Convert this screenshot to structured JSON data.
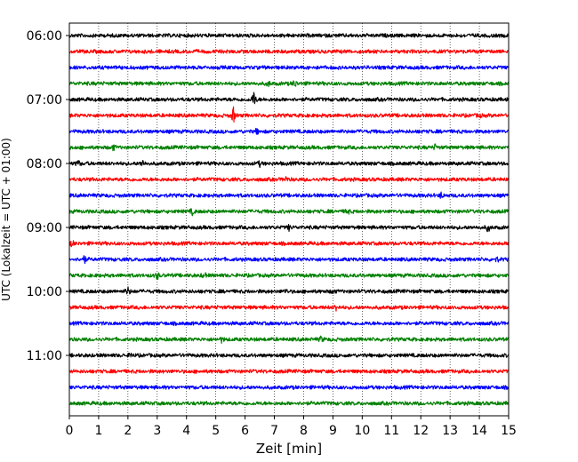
{
  "chart_data": {
    "type": "line",
    "xlabel": "Zeit  [min]",
    "ylabel": "UTC (Lokalzeit = UTC + 01:00)",
    "xlim": [
      0,
      15
    ],
    "x_ticks": [
      0,
      1,
      2,
      3,
      4,
      5,
      6,
      7,
      8,
      9,
      10,
      11,
      12,
      13,
      14,
      15
    ],
    "x_tick_labels": [
      "0",
      "1",
      "2",
      "3",
      "4",
      "5",
      "6",
      "7",
      "8",
      "9",
      "10",
      "11",
      "12",
      "13",
      "14",
      "15"
    ],
    "y_tick_labels": [
      "06:00",
      "07:00",
      "08:00",
      "09:00",
      "10:00",
      "11:00"
    ],
    "trace_interval_min": 15,
    "grid": "vertical-dotted",
    "trace_colors": [
      "#000000",
      "#ff0000",
      "#0000ff",
      "#008000"
    ],
    "series": [
      {
        "start": "06:00",
        "color": "#000000",
        "events": []
      },
      {
        "start": "06:15",
        "color": "#ff0000",
        "events": []
      },
      {
        "start": "06:30",
        "color": "#0000ff",
        "events": []
      },
      {
        "start": "06:45",
        "color": "#008000",
        "events": [
          {
            "t": 6.8,
            "amp": 0.3
          },
          {
            "t": 7.7,
            "amp": 0.45
          }
        ]
      },
      {
        "start": "07:00",
        "color": "#000000",
        "events": [
          {
            "t": 6.3,
            "amp": 0.95
          }
        ]
      },
      {
        "start": "07:15",
        "color": "#ff0000",
        "events": [
          {
            "t": 5.6,
            "amp": 0.95
          },
          {
            "t": 14.0,
            "amp": 0.2
          }
        ]
      },
      {
        "start": "07:30",
        "color": "#0000ff",
        "events": [
          {
            "t": 6.4,
            "amp": 0.3
          }
        ]
      },
      {
        "start": "07:45",
        "color": "#008000",
        "events": [
          {
            "t": 1.5,
            "amp": 0.3
          },
          {
            "t": 12.5,
            "amp": 0.3
          }
        ]
      },
      {
        "start": "08:00",
        "color": "#000000",
        "events": [
          {
            "t": 0.3,
            "amp": 0.35
          },
          {
            "t": 2.5,
            "amp": 0.4
          },
          {
            "t": 6.5,
            "amp": 0.25
          }
        ]
      },
      {
        "start": "08:15",
        "color": "#ff0000",
        "events": [
          {
            "t": 7.4,
            "amp": 0.25
          }
        ]
      },
      {
        "start": "08:30",
        "color": "#0000ff",
        "events": [
          {
            "t": 12.7,
            "amp": 0.3
          }
        ]
      },
      {
        "start": "08:45",
        "color": "#008000",
        "events": [
          {
            "t": 4.2,
            "amp": 0.3
          },
          {
            "t": 9.5,
            "amp": 0.35
          }
        ]
      },
      {
        "start": "09:00",
        "color": "#000000",
        "events": [
          {
            "t": 7.5,
            "amp": 0.25
          },
          {
            "t": 14.3,
            "amp": 0.5
          }
        ]
      },
      {
        "start": "09:15",
        "color": "#ff0000",
        "events": [
          {
            "t": 0.1,
            "amp": 0.3
          }
        ]
      },
      {
        "start": "09:30",
        "color": "#0000ff",
        "events": [
          {
            "t": 0.5,
            "amp": 0.55
          },
          {
            "t": 14.6,
            "amp": 0.25
          }
        ]
      },
      {
        "start": "09:45",
        "color": "#008000",
        "events": [
          {
            "t": 3.0,
            "amp": 0.4
          },
          {
            "t": 4.6,
            "amp": 0.35
          }
        ]
      },
      {
        "start": "10:00",
        "color": "#000000",
        "events": [
          {
            "t": 2.0,
            "amp": 0.45
          },
          {
            "t": 7.4,
            "amp": 0.2
          },
          {
            "t": 9.0,
            "amp": 0.25
          }
        ]
      },
      {
        "start": "10:15",
        "color": "#ff0000",
        "events": [
          {
            "t": 9.1,
            "amp": 0.35
          }
        ]
      },
      {
        "start": "10:30",
        "color": "#0000ff",
        "events": []
      },
      {
        "start": "10:45",
        "color": "#008000",
        "events": [
          {
            "t": 5.2,
            "amp": 0.25
          },
          {
            "t": 8.6,
            "amp": 0.3
          }
        ]
      },
      {
        "start": "11:00",
        "color": "#000000",
        "events": [
          {
            "t": 2.1,
            "amp": 0.25
          }
        ]
      },
      {
        "start": "11:15",
        "color": "#ff0000",
        "events": []
      },
      {
        "start": "11:30",
        "color": "#0000ff",
        "events": []
      },
      {
        "start": "11:45",
        "color": "#008000",
        "events": []
      }
    ]
  }
}
